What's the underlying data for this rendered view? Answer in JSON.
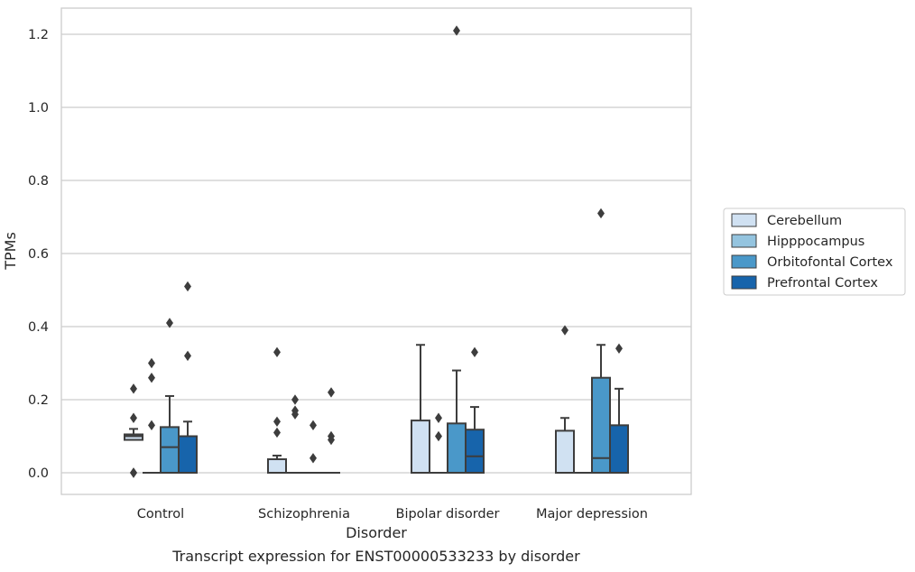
{
  "chart_data": {
    "type": "box",
    "title": "Transcript expression for ENST00000533233 by disorder",
    "xlabel": "Disorder",
    "ylabel": "TPMs",
    "ylim": [
      -0.06,
      1.27
    ],
    "yticks": [
      0.0,
      0.2,
      0.4,
      0.6,
      0.8,
      1.0,
      1.2
    ],
    "ytick_labels": [
      "0.0",
      "0.2",
      "0.4",
      "0.6",
      "0.8",
      "1.0",
      "1.2"
    ],
    "grid": "horizontal",
    "legend_position": "right",
    "categories": [
      "Control",
      "Schizophrenia",
      "Bipolar disorder",
      "Major depression"
    ],
    "series": [
      {
        "name": "Cerebellum",
        "color": "#d0e1f2",
        "boxes": [
          {
            "q1": 0.09,
            "median": 0.1,
            "q3": 0.105,
            "whisker_low": 0.09,
            "whisker_high": 0.12,
            "outliers": [
              0.23,
              0.15,
              0.0,
              0.0
            ]
          },
          {
            "q1": 0.0,
            "median": 0.0,
            "q3": 0.037,
            "whisker_low": 0.0,
            "whisker_high": 0.047,
            "outliers": [
              0.33,
              0.14,
              0.11
            ]
          },
          {
            "q1": 0.0,
            "median": 0.0,
            "q3": 0.143,
            "whisker_low": 0.0,
            "whisker_high": 0.35,
            "outliers": []
          },
          {
            "q1": 0.0,
            "median": 0.0,
            "q3": 0.115,
            "whisker_low": 0.0,
            "whisker_high": 0.15,
            "outliers": [
              0.39
            ]
          }
        ]
      },
      {
        "name": "Hipppocampus",
        "color": "#94c4df",
        "boxes": [
          {
            "q1": 0.0,
            "median": 0.0,
            "q3": 0.0,
            "whisker_low": 0.0,
            "whisker_high": 0.0,
            "outliers": [
              0.3,
              0.26,
              0.13
            ]
          },
          {
            "q1": 0.0,
            "median": 0.0,
            "q3": 0.0,
            "whisker_low": 0.0,
            "whisker_high": 0.0,
            "outliers": [
              0.2,
              0.17,
              0.16
            ]
          },
          {
            "q1": 0.0,
            "median": 0.0,
            "q3": 0.0,
            "whisker_low": 0.0,
            "whisker_high": 0.0,
            "outliers": [
              0.15,
              0.1
            ]
          },
          {
            "q1": 0.0,
            "median": 0.0,
            "q3": 0.0,
            "whisker_low": 0.0,
            "whisker_high": 0.0,
            "outliers": []
          }
        ]
      },
      {
        "name": "Orbitofontal Cortex",
        "color": "#4a98c9",
        "boxes": [
          {
            "q1": 0.0,
            "median": 0.07,
            "q3": 0.125,
            "whisker_low": 0.0,
            "whisker_high": 0.21,
            "outliers": [
              0.41
            ]
          },
          {
            "q1": 0.0,
            "median": 0.0,
            "q3": 0.0,
            "whisker_low": 0.0,
            "whisker_high": 0.0,
            "outliers": [
              0.13,
              0.04
            ]
          },
          {
            "q1": 0.0,
            "median": 0.0,
            "q3": 0.135,
            "whisker_low": 0.0,
            "whisker_high": 0.28,
            "outliers": [
              1.21
            ]
          },
          {
            "q1": 0.0,
            "median": 0.04,
            "q3": 0.26,
            "whisker_low": 0.0,
            "whisker_high": 0.35,
            "outliers": [
              0.71
            ]
          }
        ]
      },
      {
        "name": "Prefrontal Cortex",
        "color": "#1764ab",
        "boxes": [
          {
            "q1": 0.0,
            "median": 0.0,
            "q3": 0.1,
            "whisker_low": 0.0,
            "whisker_high": 0.14,
            "outliers": [
              0.51,
              0.32
            ]
          },
          {
            "q1": 0.0,
            "median": 0.0,
            "q3": 0.0,
            "whisker_low": 0.0,
            "whisker_high": 0.0,
            "outliers": [
              0.22,
              0.1,
              0.09
            ]
          },
          {
            "q1": 0.0,
            "median": 0.045,
            "q3": 0.118,
            "whisker_low": 0.0,
            "whisker_high": 0.18,
            "outliers": [
              0.33
            ]
          },
          {
            "q1": 0.0,
            "median": 0.0,
            "q3": 0.13,
            "whisker_low": 0.0,
            "whisker_high": 0.23,
            "outliers": [
              0.34
            ]
          }
        ]
      }
    ]
  }
}
